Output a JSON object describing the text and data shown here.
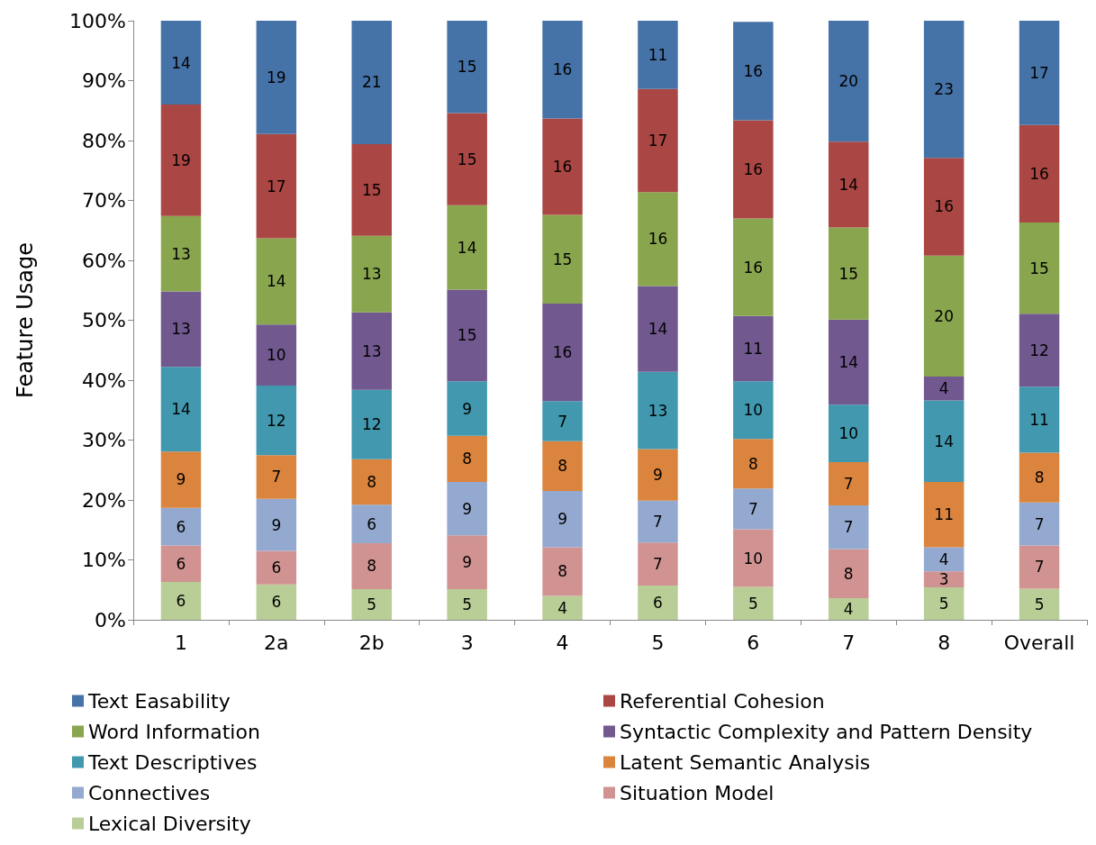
{
  "chart_data": {
    "type": "bar",
    "stacked": true,
    "ylabel": "Feature Usage",
    "categories": [
      "1",
      "2a",
      "2b",
      "3",
      "4",
      "5",
      "6",
      "7",
      "8",
      "Overall"
    ],
    "ylim": [
      0,
      100
    ],
    "yticks": [
      {
        "value": 0,
        "label": "0%"
      },
      {
        "value": 10,
        "label": "10%"
      },
      {
        "value": 20,
        "label": "20%"
      },
      {
        "value": 30,
        "label": "30%"
      },
      {
        "value": 40,
        "label": "40%"
      },
      {
        "value": 50,
        "label": "50%"
      },
      {
        "value": 60,
        "label": "60%"
      },
      {
        "value": 70,
        "label": "70%"
      },
      {
        "value": 80,
        "label": "80%"
      },
      {
        "value": 90,
        "label": "90%"
      },
      {
        "value": 100,
        "label": "100%"
      }
    ],
    "grid": false,
    "legend": "bottom",
    "series": [
      {
        "name": "Lexical Diversity",
        "color": "#b9cd96",
        "values": [
          6.3,
          5.9,
          5.1,
          5.1,
          4.0,
          5.7,
          5.5,
          3.6,
          5.4,
          5.2
        ],
        "value_labels": [
          "6",
          "6",
          "5",
          "5",
          "4",
          "6",
          "5",
          "4",
          "5",
          "5"
        ]
      },
      {
        "name": "Situation Model",
        "color": "#d19392",
        "values": [
          6.1,
          5.6,
          7.7,
          9.0,
          8.1,
          7.2,
          9.6,
          8.2,
          2.7,
          7.2
        ],
        "value_labels": [
          "6",
          "6",
          "8",
          "9",
          "8",
          "7",
          "10",
          "8",
          "3",
          "7"
        ]
      },
      {
        "name": "Connectives",
        "color": "#93a9cf",
        "values": [
          6.3,
          8.7,
          6.4,
          8.9,
          9.4,
          7.0,
          6.8,
          7.3,
          4.0,
          7.2
        ],
        "value_labels": [
          "6",
          "9",
          "6",
          "9",
          "9",
          "7",
          "7",
          "7",
          "4",
          "7"
        ]
      },
      {
        "name": "Latent Semantic Analysis",
        "color": "#db843d",
        "values": [
          9.4,
          7.3,
          7.6,
          7.7,
          8.3,
          8.6,
          8.3,
          7.2,
          10.9,
          8.3
        ],
        "value_labels": [
          "9",
          "7",
          "8",
          "8",
          "8",
          "9",
          "8",
          "7",
          "11",
          "8"
        ]
      },
      {
        "name": "Text Descriptives",
        "color": "#4198af",
        "values": [
          14.1,
          11.6,
          11.6,
          9.1,
          6.7,
          12.9,
          9.6,
          9.6,
          13.6,
          11.0
        ],
        "value_labels": [
          "14",
          "12",
          "12",
          "9",
          "7",
          "13",
          "10",
          "10",
          "14",
          "11"
        ]
      },
      {
        "name": "Syntactic Complexity and Pattern Density",
        "color": "#71588f",
        "values": [
          12.6,
          10.2,
          12.9,
          15.3,
          16.3,
          14.3,
          10.9,
          14.2,
          4.0,
          12.2
        ],
        "value_labels": [
          "13",
          "10",
          "13",
          "15",
          "16",
          "14",
          "11",
          "14",
          "4",
          "12"
        ]
      },
      {
        "name": "Word Information",
        "color": "#89a54e",
        "values": [
          12.6,
          14.4,
          12.8,
          14.1,
          14.8,
          15.7,
          16.3,
          15.4,
          20.2,
          15.2
        ],
        "value_labels": [
          "13",
          "14",
          "13",
          "14",
          "15",
          "16",
          "16",
          "15",
          "20",
          "15"
        ]
      },
      {
        "name": "Referential Cohesion",
        "color": "#aa4643",
        "values": [
          18.6,
          17.4,
          15.3,
          15.4,
          16.1,
          17.2,
          16.4,
          14.3,
          16.3,
          16.3
        ],
        "value_labels": [
          "19",
          "17",
          "15",
          "15",
          "16",
          "17",
          "16",
          "14",
          "16",
          "16"
        ]
      },
      {
        "name": "Text Easability",
        "color": "#4572a7",
        "values": [
          14.0,
          18.9,
          20.6,
          15.4,
          16.3,
          11.4,
          16.4,
          20.2,
          22.9,
          17.4
        ],
        "value_labels": [
          "14",
          "19",
          "21",
          "15",
          "16",
          "11",
          "16",
          "20",
          "23",
          "17"
        ]
      }
    ]
  }
}
